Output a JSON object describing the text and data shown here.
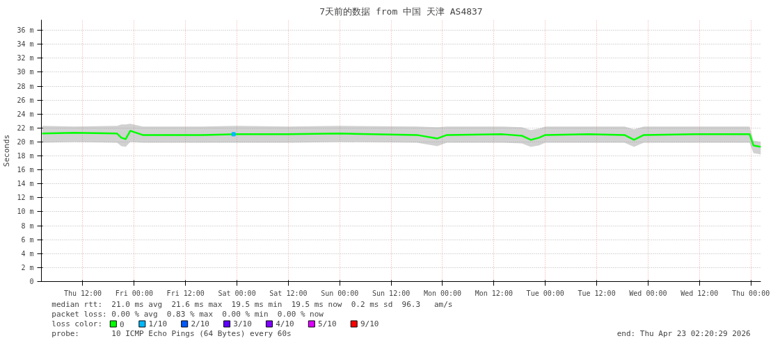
{
  "chart_data": {
    "type": "line",
    "title": "7天前的数据 from 中国 天津 AS4837",
    "ylabel": "Seconds",
    "xlim": [
      "2026-04-16T02:20",
      "2026-04-23T02:20"
    ],
    "xticks": [
      {
        "value": "2026-04-16T12:00",
        "label": "Thu 12:00"
      },
      {
        "value": "2026-04-17T00:00",
        "label": "Fri 00:00"
      },
      {
        "value": "2026-04-17T12:00",
        "label": "Fri 12:00"
      },
      {
        "value": "2026-04-18T00:00",
        "label": "Sat 00:00"
      },
      {
        "value": "2026-04-18T12:00",
        "label": "Sat 12:00"
      },
      {
        "value": "2026-04-19T00:00",
        "label": "Sun 00:00"
      },
      {
        "value": "2026-04-19T12:00",
        "label": "Sun 12:00"
      },
      {
        "value": "2026-04-20T00:00",
        "label": "Mon 00:00"
      },
      {
        "value": "2026-04-20T12:00",
        "label": "Mon 12:00"
      },
      {
        "value": "2026-04-21T00:00",
        "label": "Tue 00:00"
      },
      {
        "value": "2026-04-21T12:00",
        "label": "Tue 12:00"
      },
      {
        "value": "2026-04-22T00:00",
        "label": "Wed 00:00"
      },
      {
        "value": "2026-04-22T12:00",
        "label": "Wed 12:00"
      },
      {
        "value": "2026-04-23T00:00",
        "label": "Thu 00:00"
      }
    ],
    "ylim": [
      0,
      37.5
    ],
    "yticks": [
      0,
      {
        "value": 2,
        "label": "2 m"
      },
      {
        "value": 4,
        "label": "4 m"
      },
      {
        "value": 6,
        "label": "6 m"
      },
      {
        "value": 8,
        "label": "8 m"
      },
      {
        "value": 10,
        "label": "10 m"
      },
      {
        "value": 12,
        "label": "12 m"
      },
      {
        "value": 14,
        "label": "14 m"
      },
      {
        "value": 16,
        "label": "16 m"
      },
      {
        "value": 18,
        "label": "18 m"
      },
      {
        "value": 20,
        "label": "20 m"
      },
      {
        "value": 22,
        "label": "22 m"
      },
      {
        "value": 24,
        "label": "24 m"
      },
      {
        "value": 26,
        "label": "26 m"
      },
      {
        "value": 28,
        "label": "28 m"
      },
      {
        "value": 30,
        "label": "30 m"
      },
      {
        "value": 32,
        "label": "32 m"
      },
      {
        "value": 34,
        "label": "34 m"
      },
      {
        "value": 36,
        "label": "36 m"
      }
    ],
    "grid": true,
    "legend": "bottom",
    "series": [
      {
        "name": "0",
        "color": "#00ff00",
        "x": [
          "2026-04-16T02:30",
          "2026-04-16T10:00",
          "2026-04-16T20:00",
          "2026-04-16T21:00",
          "2026-04-16T22:00",
          "2026-04-16T23:06",
          "2026-04-17T02:00",
          "2026-04-17T16:00",
          "2026-04-18T00:00",
          "2026-04-18T12:00",
          "2026-04-19T00:00",
          "2026-04-19T18:00",
          "2026-04-19T22:48",
          "2026-04-20T01:00",
          "2026-04-20T14:00",
          "2026-04-20T18:30",
          "2026-04-20T20:36",
          "2026-04-20T22:30",
          "2026-04-21T00:00",
          "2026-04-21T10:00",
          "2026-04-21T18:30",
          "2026-04-21T20:42",
          "2026-04-21T23:00",
          "2026-04-22T11:00",
          "2026-04-22T23:42",
          "2026-04-23T00:36",
          "2026-04-23T02:20"
        ],
        "values": [
          21.2,
          21.3,
          21.2,
          20.6,
          20.4,
          21.6,
          21.0,
          21.0,
          21.1,
          21.1,
          21.2,
          21.0,
          20.5,
          21.0,
          21.1,
          20.9,
          20.3,
          20.6,
          21.0,
          21.1,
          21.0,
          20.3,
          21.0,
          21.1,
          21.1,
          19.5,
          19.3
        ],
        "lower": [
          19.9,
          20.0,
          19.9,
          19.4,
          19.3,
          20.0,
          19.9,
          19.9,
          19.9,
          19.9,
          20.0,
          19.9,
          19.4,
          19.9,
          19.9,
          19.8,
          19.3,
          19.5,
          19.9,
          19.9,
          19.9,
          19.3,
          19.9,
          19.9,
          19.9,
          18.4,
          18.2
        ],
        "upper": [
          22.3,
          22.2,
          22.3,
          22.5,
          22.5,
          22.6,
          22.2,
          22.2,
          22.3,
          22.2,
          22.3,
          22.2,
          22.1,
          22.2,
          22.2,
          22.1,
          21.7,
          21.9,
          22.2,
          22.2,
          22.2,
          21.8,
          22.2,
          22.2,
          22.2,
          20.2,
          20.0
        ]
      },
      {
        "name": "1/10",
        "color": "#00b8ff",
        "type": "scatter",
        "x": [
          "2026-04-17T23:12"
        ],
        "values": [
          21.1
        ]
      },
      {
        "name": "2/10",
        "color": "#0059ff",
        "type": "scatter"
      },
      {
        "name": "3/10",
        "color": "#5e00ff",
        "type": "scatter"
      },
      {
        "name": "4/10",
        "color": "#7e00ff",
        "type": "scatter"
      },
      {
        "name": "5/10",
        "color": "#dd00ff",
        "type": "scatter"
      },
      {
        "name": "9/10",
        "color": "#ff0000",
        "type": "scatter"
      }
    ],
    "annotations": [
      "median rtt:  21.0 ms avg  21.6 ms max  19.5 ms min  19.5 ms now  0.2 ms sd  96.3   am/s",
      "packet loss: 0.00 % avg  0.83 % max  0.00 % min  0.00 % now",
      "loss color:",
      "probe:       10 ICMP Echo Pings (64 Bytes) every 60s",
      "end: Thu Apr 23 02:20:29 2026"
    ]
  }
}
